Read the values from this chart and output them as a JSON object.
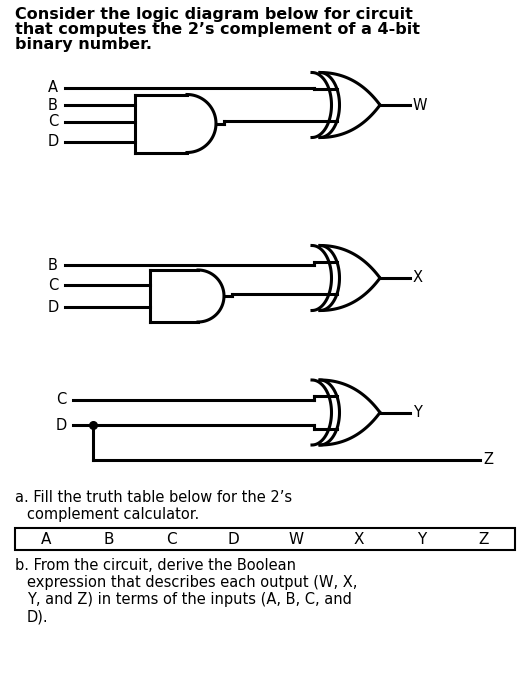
{
  "title_line1": "Consider the logic diagram below for circuit",
  "title_line2": "that computes the 2’s complement of a 4-bit",
  "title_line3": "binary number.",
  "bg_color": "#ffffff",
  "line_color": "#000000",
  "lw": 2.2,
  "table_headers": [
    "A",
    "B",
    "C",
    "D",
    "W",
    "X",
    "Y",
    "Z"
  ],
  "qa": "a. Fill the truth table below for the 2’s",
  "qa2": "complement calculator.",
  "qb1": "b. From the circuit, derive the Boolean",
  "qb2": "expression that describes each output (W, X,",
  "qb3": "Y, and Z) in terms of the inputs (A, B, C, and",
  "qb4": "D)."
}
